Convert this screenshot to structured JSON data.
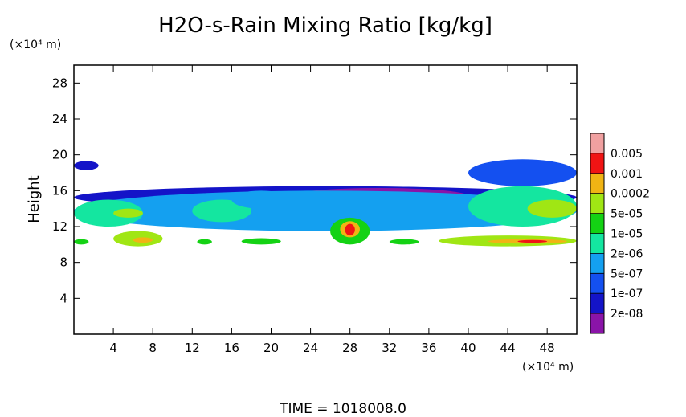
{
  "chart_data": {
    "type": "heatmap",
    "title": "H2O-s-Rain Mixing Ratio [kg/kg]",
    "ylabel": "Height",
    "y_unit": "(×10⁴ m)",
    "x_unit": "(×10⁴ m)",
    "footer": "TIME  =  1018008.0",
    "xlim": [
      0,
      51
    ],
    "ylim": [
      0,
      30
    ],
    "x_ticks": [
      4,
      8,
      12,
      16,
      20,
      24,
      28,
      32,
      36,
      40,
      44,
      48
    ],
    "y_ticks": [
      4,
      8,
      12,
      16,
      20,
      24,
      28
    ],
    "colorbar": {
      "colors": [
        "#8a14a8",
        "#1414c8",
        "#1450f0",
        "#14a0f0",
        "#14e6a0",
        "#14d214",
        "#a0e614",
        "#f0b414",
        "#f01414",
        "#f0a0a0"
      ],
      "labels": [
        "2e-08",
        "1e-07",
        "5e-07",
        "2e-06",
        "1e-05",
        "5e-05",
        "0.0002",
        "0.001",
        "0.005"
      ]
    },
    "regions": [
      {
        "x": [
          0,
          51
        ],
        "y": [
          14.0,
          16.5
        ],
        "level": 1
      },
      {
        "x": [
          0,
          2.5
        ],
        "y": [
          18.3,
          19.3
        ],
        "level": 1
      },
      {
        "x": [
          22,
          40
        ],
        "y": [
          14.5,
          16.3
        ],
        "level": 0
      },
      {
        "x": [
          40,
          51
        ],
        "y": [
          16.5,
          19.5
        ],
        "level": 2
      },
      {
        "x": [
          0,
          51
        ],
        "y": [
          11.5,
          16.0
        ],
        "level": 3
      },
      {
        "x": [
          0,
          7
        ],
        "y": [
          12.0,
          15.0
        ],
        "level": 4
      },
      {
        "x": [
          4,
          7
        ],
        "y": [
          13.0,
          14.0
        ],
        "level": 6
      },
      {
        "x": [
          12,
          18
        ],
        "y": [
          12.5,
          15.0
        ],
        "level": 4
      },
      {
        "x": [
          16,
          22
        ],
        "y": [
          14.0,
          16.0
        ],
        "level": 3
      },
      {
        "x": [
          40,
          51
        ],
        "y": [
          12.0,
          16.5
        ],
        "level": 4
      },
      {
        "x": [
          46,
          51
        ],
        "y": [
          13.0,
          15.0
        ],
        "level": 6
      },
      {
        "x": [
          0,
          1.5
        ],
        "y": [
          10.0,
          10.6
        ],
        "level": 5
      },
      {
        "x": [
          4,
          9
        ],
        "y": [
          9.8,
          11.5
        ],
        "level": 6
      },
      {
        "x": [
          6,
          8
        ],
        "y": [
          10.2,
          10.8
        ],
        "level": 7
      },
      {
        "x": [
          12.5,
          14
        ],
        "y": [
          10.0,
          10.6
        ],
        "level": 5
      },
      {
        "x": [
          17,
          21
        ],
        "y": [
          10.0,
          10.7
        ],
        "level": 5
      },
      {
        "x": [
          26,
          30
        ],
        "y": [
          10.0,
          13.0
        ],
        "level": 5
      },
      {
        "x": [
          27,
          29
        ],
        "y": [
          10.8,
          12.6
        ],
        "level": 7
      },
      {
        "x": [
          27.5,
          28.5
        ],
        "y": [
          11.0,
          12.3
        ],
        "level": 8
      },
      {
        "x": [
          32,
          35
        ],
        "y": [
          10.0,
          10.6
        ],
        "level": 5
      },
      {
        "x": [
          37,
          51
        ],
        "y": [
          9.8,
          11.0
        ],
        "level": 6
      },
      {
        "x": [
          42,
          50
        ],
        "y": [
          10.1,
          10.6
        ],
        "level": 7
      },
      {
        "x": [
          45,
          48
        ],
        "y": [
          10.2,
          10.5
        ],
        "level": 8
      }
    ]
  }
}
